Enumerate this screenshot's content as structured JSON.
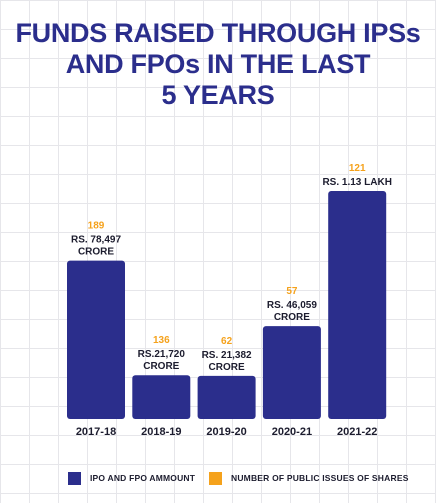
{
  "title": {
    "line1": "FUNDS RAISED THROUGH IPSs",
    "line2": "AND FPOs IN THE LAST",
    "line3": "5 YEARS"
  },
  "colors": {
    "amount": "#2b2e8c",
    "count": "#f5a21c"
  },
  "legend": {
    "amount_label": "IPO AND FPO AMMOUNT",
    "count_label": "NUMBER OF PUBLIC ISSUES OF SHARES"
  },
  "chart_data": {
    "type": "bar",
    "title": "FUNDS RAISED THROUGH IPSs AND FPOs IN THE LAST 5 YEARS",
    "categories": [
      "2017-18",
      "2018-19",
      "2019-20",
      "2020-21",
      "2021-22"
    ],
    "series": [
      {
        "name": "IPO AND FPO AMMOUNT",
        "unit": "Rs. crore",
        "values": [
          78497,
          21720,
          21382,
          46059,
          113000
        ],
        "labels": [
          [
            "RS. 78,497",
            "CRORE"
          ],
          [
            "RS.21,720",
            "CRORE"
          ],
          [
            "RS. 21,382",
            "CRORE"
          ],
          [
            "RS. 46,059",
            "CRORE"
          ],
          [
            "RS. 1.13 LAKH"
          ]
        ]
      },
      {
        "name": "NUMBER OF PUBLIC ISSUES OF SHARES",
        "values": [
          189,
          136,
          62,
          57,
          121
        ]
      }
    ],
    "legend_position": "bottom",
    "grid": true
  }
}
